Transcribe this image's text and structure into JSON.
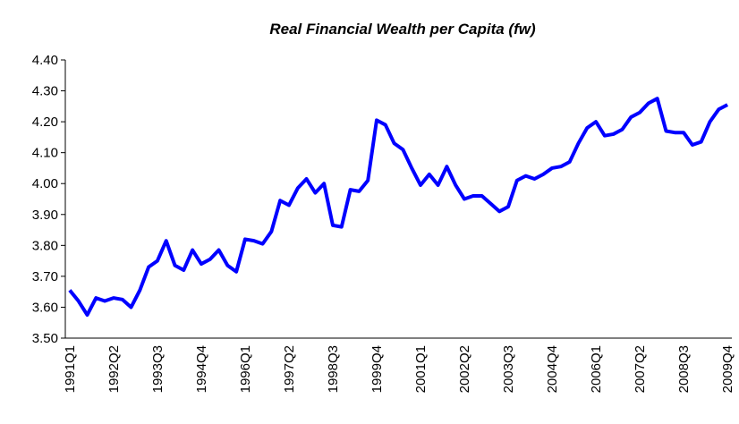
{
  "chart_data": {
    "type": "line",
    "title": "Real Financial Wealth per Capita (fw)",
    "categories": [
      "1991Q1",
      null,
      null,
      null,
      null,
      "1992Q2",
      null,
      null,
      null,
      null,
      "1993Q3",
      null,
      null,
      null,
      null,
      "1994Q4",
      null,
      null,
      null,
      null,
      "1996Q1",
      null,
      null,
      null,
      null,
      "1997Q2",
      null,
      null,
      null,
      null,
      "1998Q3",
      null,
      null,
      null,
      null,
      "1999Q4",
      null,
      null,
      null,
      null,
      "2001Q1",
      null,
      null,
      null,
      null,
      "2002Q2",
      null,
      null,
      null,
      null,
      "2003Q3",
      null,
      null,
      null,
      null,
      "2004Q4",
      null,
      null,
      null,
      null,
      "2006Q1",
      null,
      null,
      null,
      null,
      "2007Q2",
      null,
      null,
      null,
      null,
      "2008Q3",
      null,
      null,
      null,
      null,
      "2009Q4"
    ],
    "series": [
      {
        "color": "#0000ff",
        "values": [
          3.655,
          3.62,
          3.575,
          3.63,
          3.62,
          3.63,
          3.625,
          3.6,
          3.655,
          3.73,
          3.75,
          3.815,
          3.735,
          3.72,
          3.785,
          3.74,
          3.755,
          3.785,
          3.735,
          3.715,
          3.82,
          3.815,
          3.805,
          3.845,
          3.945,
          3.93,
          3.985,
          4.015,
          3.97,
          4.0,
          3.865,
          3.86,
          3.98,
          3.975,
          4.01,
          4.205,
          4.19,
          4.13,
          4.11,
          4.05,
          3.995,
          4.03,
          3.995,
          4.055,
          3.995,
          3.95,
          3.96,
          3.96,
          3.935,
          3.91,
          3.925,
          4.01,
          4.025,
          4.015,
          4.03,
          4.05,
          4.055,
          4.07,
          4.13,
          4.18,
          4.2,
          4.155,
          4.16,
          4.175,
          4.215,
          4.23,
          4.26,
          4.275,
          4.17,
          4.165,
          4.165,
          4.125,
          4.135,
          4.2,
          4.24,
          4.255
        ]
      }
    ],
    "ylim": [
      3.5,
      4.4
    ],
    "yticks": [
      {
        "value": 3.5,
        "label": "3.50"
      },
      {
        "value": 3.6,
        "label": "3.60"
      },
      {
        "value": 3.7,
        "label": "3.70"
      },
      {
        "value": 3.8,
        "label": "3.80"
      },
      {
        "value": 3.9,
        "label": "3.90"
      },
      {
        "value": 4.0,
        "label": "4.00"
      },
      {
        "value": 4.1,
        "label": "4.10"
      },
      {
        "value": 4.2,
        "label": "4.20"
      },
      {
        "value": 4.3,
        "label": "4.30"
      },
      {
        "value": 4.4,
        "label": "4.40"
      }
    ],
    "grid": false
  }
}
